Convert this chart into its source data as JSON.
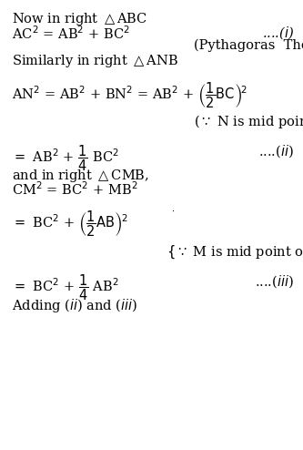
{
  "background_color": "#ffffff",
  "figsize": [
    3.33,
    4.94
  ],
  "dpi": 100,
  "fs": 10.5
}
